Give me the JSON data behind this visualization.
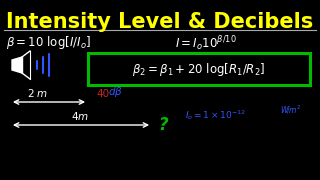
{
  "bg_color": "#000000",
  "title_text": "Intensity Level & Decibels",
  "title_color": "#ffff00",
  "title_fontsize": 15,
  "separator_color": "#aaaaaa",
  "formula2_box_color": "#00bb00",
  "wave_color": "#3355ff",
  "arrow1_db_color": "#cc2222",
  "arrow1_unit_color": "#3355ff",
  "arrow2_q_color": "#00bb00",
  "i0_color": "#3355ff",
  "text_color": "#ffffff",
  "formula_fontsize": 8.5,
  "small_fontsize": 7.5
}
